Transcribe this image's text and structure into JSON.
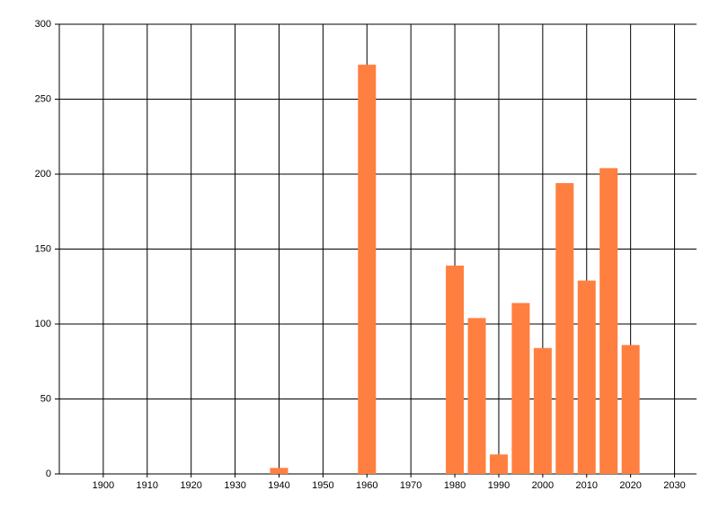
{
  "chart_data": {
    "type": "bar",
    "x": [
      1940,
      1960,
      1980,
      1985,
      1990,
      1995,
      2000,
      2005,
      2010,
      2015,
      2020
    ],
    "values": [
      4,
      273,
      139,
      104,
      13,
      114,
      84,
      194,
      129,
      204,
      86
    ],
    "color": "#ff7f40",
    "xlim": [
      1890,
      2035
    ],
    "xticks": [
      1900,
      1910,
      1920,
      1930,
      1940,
      1950,
      1960,
      1970,
      1980,
      1990,
      2000,
      2010,
      2020,
      2030
    ],
    "ylim": [
      0,
      300
    ],
    "yticks": [
      0,
      50,
      100,
      150,
      200,
      250,
      300
    ],
    "grid": true
  }
}
